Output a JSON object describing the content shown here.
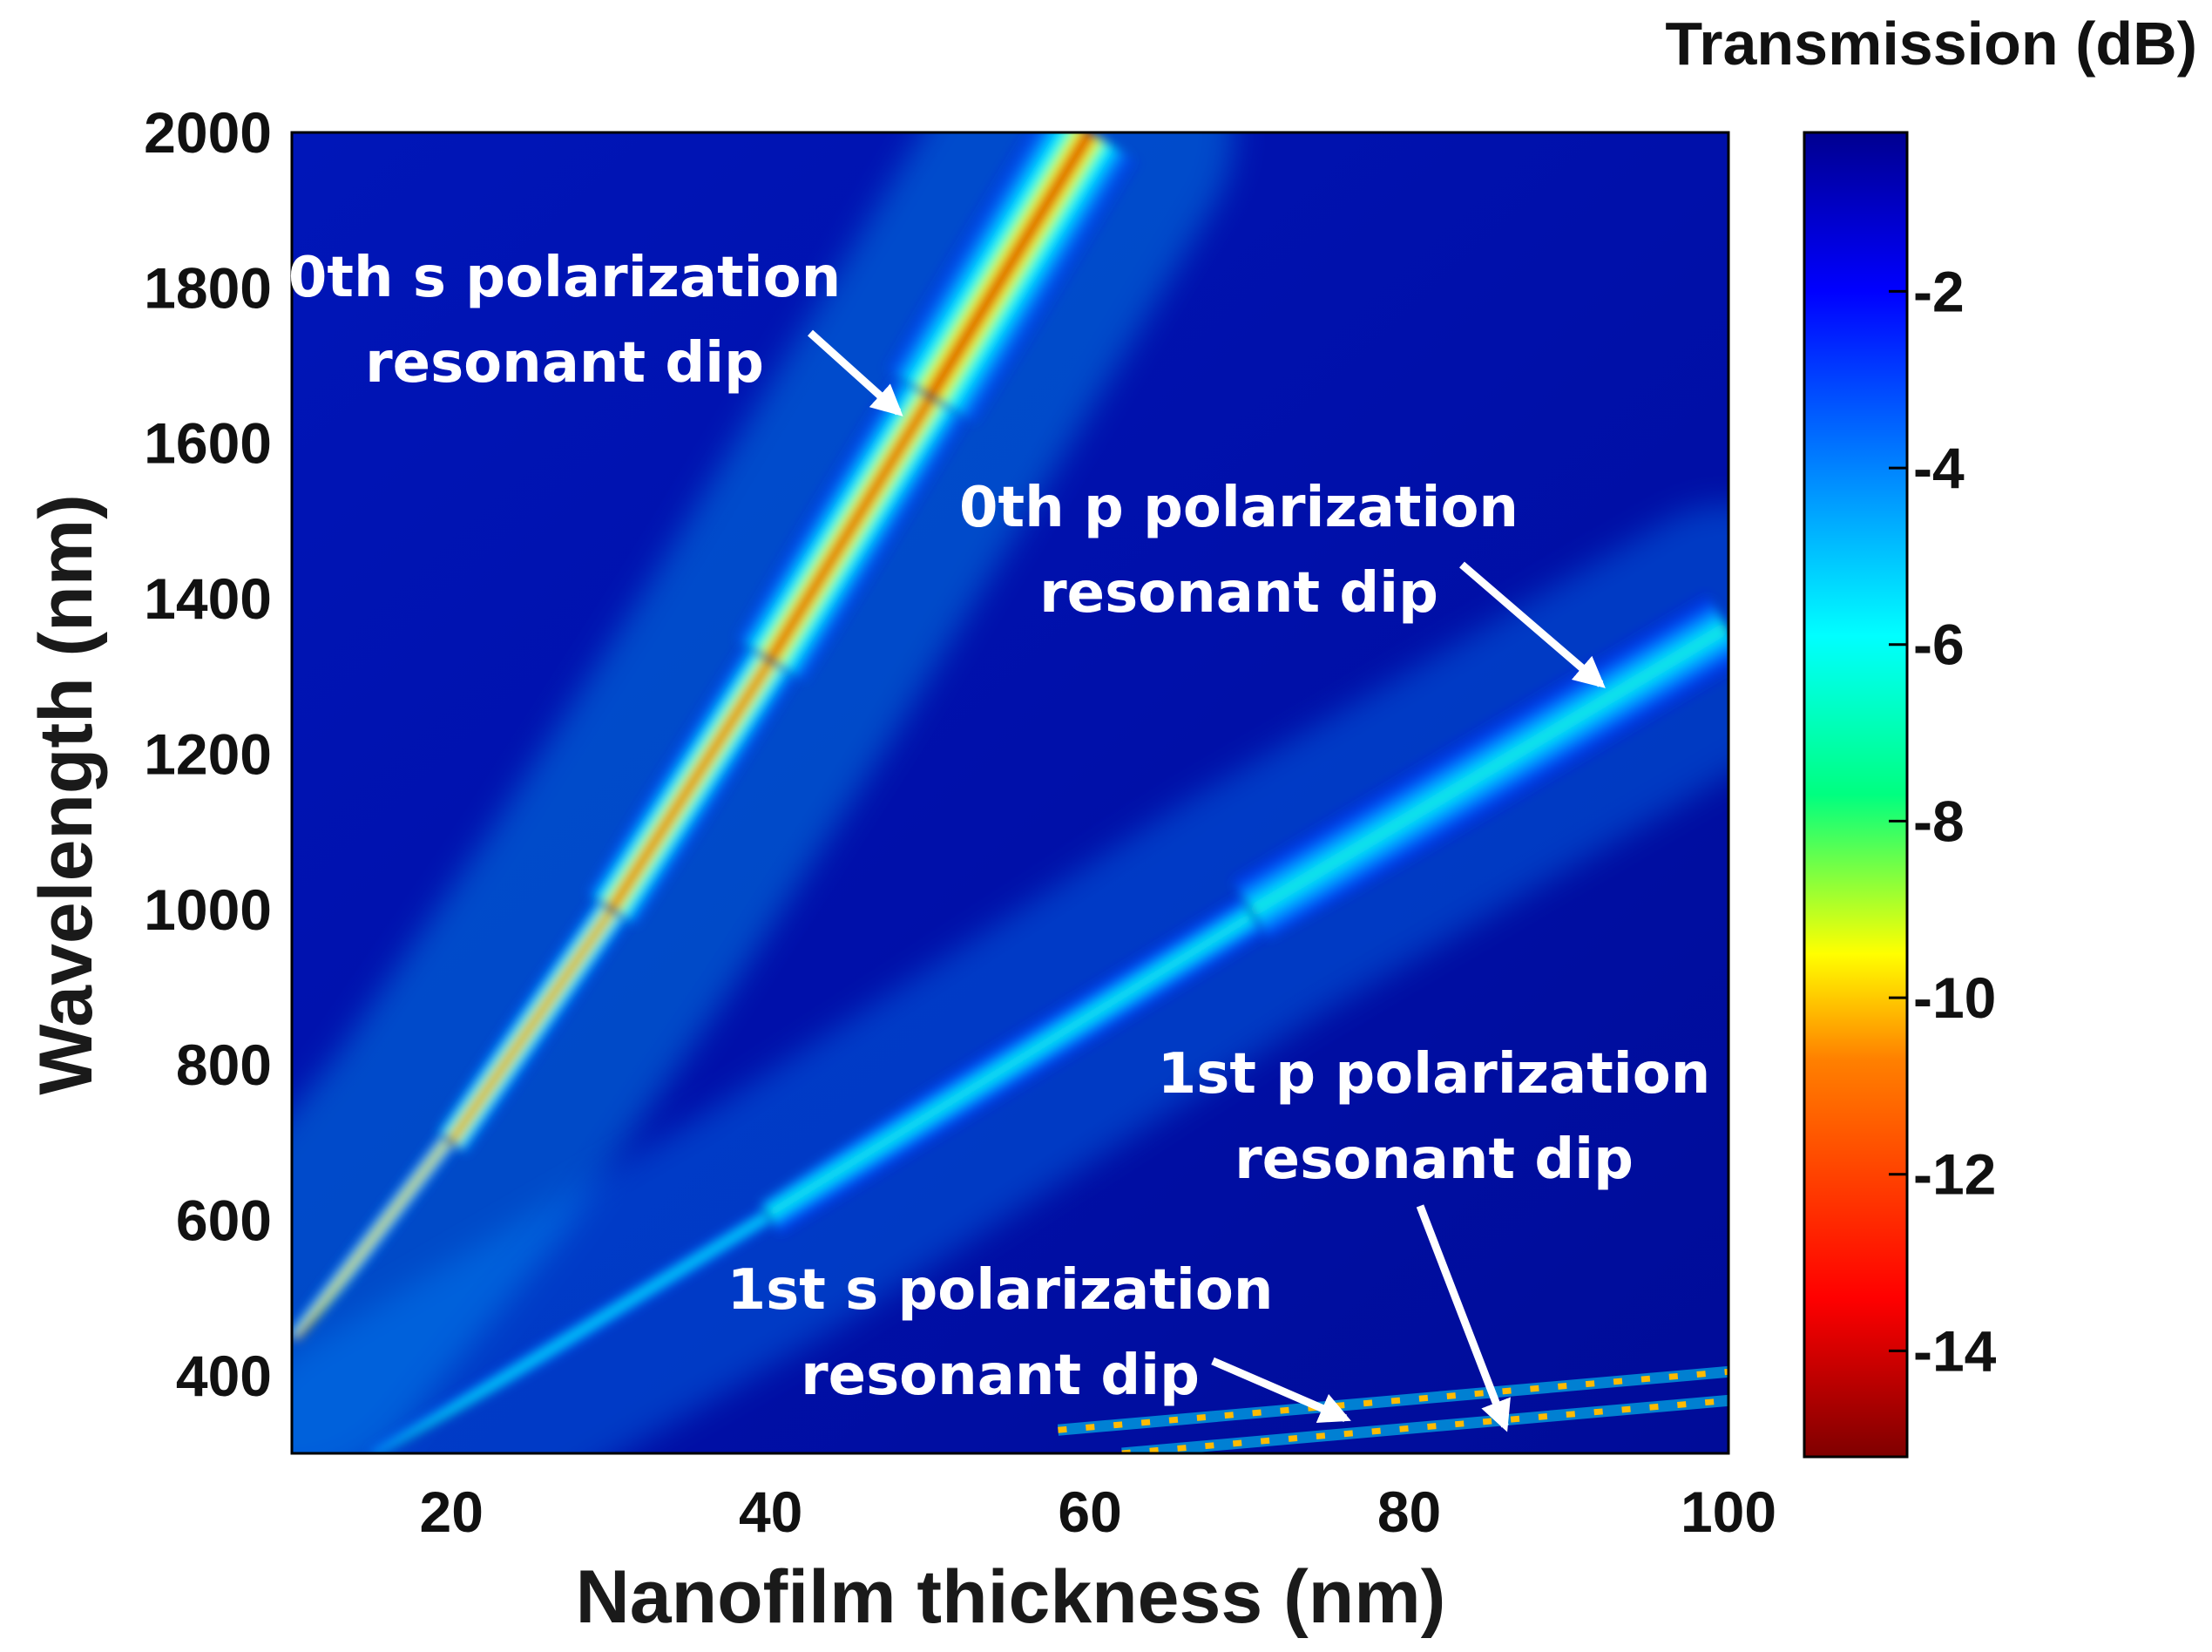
{
  "chart_data": {
    "type": "heatmap",
    "title": "",
    "xlabel": "Nanofilm thickness (nm)",
    "ylabel": "Wavelength (nm)",
    "xlim": [
      10,
      100
    ],
    "ylim": [
      300,
      2000
    ],
    "xticks": [
      20,
      40,
      60,
      80,
      100
    ],
    "yticks": [
      400,
      600,
      800,
      1000,
      1200,
      1400,
      1600,
      1800,
      2000
    ],
    "colorbar": {
      "label": "Transmission (dB)",
      "range": [
        -15.2,
        -0.2
      ],
      "ticks": [
        -2,
        -4,
        -6,
        -8,
        -10,
        -12,
        -14
      ],
      "colormap": "jet"
    },
    "series": [
      {
        "name": "0th s polarization resonant dip",
        "points": [
          {
            "x": 10,
            "y": 450
          },
          {
            "x": 20,
            "y": 700
          },
          {
            "x": 30,
            "y": 1000
          },
          {
            "x": 40,
            "y": 1320
          },
          {
            "x": 50,
            "y": 1660
          },
          {
            "x": 60,
            "y": 2000
          }
        ],
        "min_transmission_db": -15
      },
      {
        "name": "0th p polarization resonant dip",
        "points": [
          {
            "x": 15,
            "y": 300
          },
          {
            "x": 40,
            "y": 600
          },
          {
            "x": 70,
            "y": 1000
          },
          {
            "x": 100,
            "y": 1360
          }
        ],
        "min_transmission_db": -6
      },
      {
        "name": "1st s polarization resonant dip",
        "points": [
          {
            "x": 58,
            "y": 330
          },
          {
            "x": 100,
            "y": 405
          }
        ],
        "min_transmission_db": -10
      },
      {
        "name": "1st p polarization resonant dip",
        "points": [
          {
            "x": 62,
            "y": 300
          },
          {
            "x": 100,
            "y": 368
          }
        ],
        "min_transmission_db": -10
      }
    ],
    "annotations": [
      {
        "line1": "0th s polarization",
        "line2": "resonant dip",
        "points_to": {
          "x": 48,
          "y": 1640
        }
      },
      {
        "line1": "0th p polarization",
        "line2": "resonant dip",
        "points_to": {
          "x": 92,
          "y": 1290
        }
      },
      {
        "line1": "1st p polarization",
        "line2": "resonant dip",
        "points_to": {
          "x": 86,
          "y": 335
        }
      },
      {
        "line1": "1st s polarization",
        "line2": "resonant dip",
        "points_to": {
          "x": 76,
          "y": 345
        }
      }
    ]
  }
}
